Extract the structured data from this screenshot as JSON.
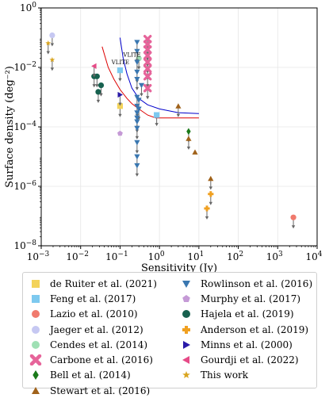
{
  "chart_data": {
    "type": "scatter",
    "xlabel": "Sensitivity (Jy)",
    "ylabel": "Surface density (deg⁻²)",
    "xscale": "log",
    "yscale": "log",
    "xlim": [
      0.001,
      10000
    ],
    "ylim": [
      1e-08,
      1
    ],
    "xticks": [
      {
        "v": 0.001,
        "b": "10",
        "e": "−3"
      },
      {
        "v": 0.01,
        "b": "10",
        "e": "−2"
      },
      {
        "v": 0.1,
        "b": "10",
        "e": "−1"
      },
      {
        "v": 1,
        "b": "10",
        "e": "0"
      },
      {
        "v": 10,
        "b": "10",
        "e": "1"
      },
      {
        "v": 100,
        "b": "10",
        "e": "2"
      },
      {
        "v": 1000,
        "b": "10",
        "e": "3"
      },
      {
        "v": 10000,
        "b": "10",
        "e": "4"
      }
    ],
    "yticks": [
      {
        "v": 1e-08,
        "b": "10",
        "e": "−8"
      },
      {
        "v": 1e-06,
        "b": "10",
        "e": "−6"
      },
      {
        "v": 0.0001,
        "b": "10",
        "e": "−4"
      },
      {
        "v": 0.01,
        "b": "10",
        "e": "−2"
      },
      {
        "v": 1,
        "b": "10",
        "e": "0"
      }
    ],
    "curves": [
      {
        "label": "VLITE",
        "color": "#0000cc",
        "points": [
          [
            0.1,
            0.1
          ],
          [
            0.12,
            0.02
          ],
          [
            0.15,
            0.006
          ],
          [
            0.2,
            0.002
          ],
          [
            0.3,
            0.0009
          ],
          [
            0.5,
            0.00055
          ],
          [
            1,
            0.0004
          ],
          [
            3,
            0.0003
          ],
          [
            10,
            0.00028
          ]
        ]
      },
      {
        "label": "VLITE",
        "color": "#dd0000",
        "points": [
          [
            0.035,
            0.05
          ],
          [
            0.05,
            0.01
          ],
          [
            0.07,
            0.004
          ],
          [
            0.1,
            0.0018
          ],
          [
            0.15,
            0.0009
          ],
          [
            0.2,
            0.0006
          ],
          [
            0.3,
            0.0004
          ],
          [
            0.5,
            0.00025
          ],
          [
            0.8,
            0.0002
          ],
          [
            2,
            0.0002
          ],
          [
            10,
            0.0002
          ]
        ]
      }
    ],
    "series": [
      {
        "name": "de Ruiter et al. (2021)",
        "marker": "square",
        "color": "#f3d35a",
        "points": [
          [
            0.1,
            0.0005,
            1
          ]
        ]
      },
      {
        "name": "Feng et al. (2017)",
        "marker": "square",
        "color": "#7dc9ef",
        "points": [
          [
            0.1,
            0.008,
            1
          ],
          [
            0.85,
            0.00025,
            1
          ]
        ]
      },
      {
        "name": "Lazio et al. (2010)",
        "marker": "circle",
        "color": "#f07a6d",
        "points": [
          [
            2500,
            9e-08,
            1
          ]
        ]
      },
      {
        "name": "Jaeger et al. (2012)",
        "marker": "circle",
        "color": "#c6c8f2",
        "points": [
          [
            0.0019,
            0.12,
            1
          ]
        ]
      },
      {
        "name": "Cendes et al. (2014)",
        "marker": "circle",
        "color": "#9fe0b4",
        "points": [
          [
            0.3,
            0.02,
            1
          ]
        ]
      },
      {
        "name": "Carbone et al. (2016)",
        "marker": "x",
        "color": "#e6649a",
        "points": [
          [
            0.5,
            0.09,
            1
          ],
          [
            0.5,
            0.06,
            1
          ],
          [
            0.5,
            0.04,
            1
          ],
          [
            0.5,
            0.025,
            1
          ],
          [
            0.5,
            0.015,
            1
          ],
          [
            0.5,
            0.009,
            1
          ],
          [
            0.5,
            0.005,
            1
          ],
          [
            0.5,
            0.002,
            1
          ]
        ]
      },
      {
        "name": "Bell et al. (2014)",
        "marker": "diamond",
        "color": "#1a7a1a",
        "points": [
          [
            5.5,
            7e-05,
            1
          ]
        ]
      },
      {
        "name": "Stewart et al. (2016)",
        "marker": "triangle-up",
        "color": "#a0621a",
        "points": [
          [
            3,
            0.0005,
            1
          ],
          [
            5.5,
            4e-05,
            1
          ],
          [
            8,
            1.4e-05,
            0
          ],
          [
            20,
            1.8e-06,
            1
          ]
        ]
      },
      {
        "name": "Rowlinson et al. (2016)",
        "marker": "triangle-down",
        "color": "#3a77b0",
        "points": [
          [
            0.27,
            0.07,
            1
          ],
          [
            0.27,
            0.035,
            1
          ],
          [
            0.27,
            0.015,
            1
          ],
          [
            0.27,
            0.007,
            1
          ],
          [
            0.27,
            0.004,
            1
          ],
          [
            0.27,
            0.001,
            1
          ],
          [
            0.3,
            0.0008,
            1
          ],
          [
            0.27,
            0.0005,
            1
          ],
          [
            0.3,
            0.0004,
            1
          ],
          [
            0.27,
            0.0003,
            1
          ],
          [
            0.27,
            0.0002,
            1
          ],
          [
            0.27,
            0.00015,
            1
          ],
          [
            0.27,
            9e-05,
            1
          ],
          [
            0.27,
            3e-05,
            1
          ],
          [
            0.27,
            1e-05,
            1
          ],
          [
            0.27,
            5e-06,
            1
          ],
          [
            0.35,
            0.0025,
            1
          ]
        ]
      },
      {
        "name": "Murphy et al. (2017)",
        "marker": "pentagon",
        "color": "#c59ad6",
        "points": [
          [
            0.1,
            6e-05,
            0
          ]
        ]
      },
      {
        "name": "Hajela et al. (2019)",
        "marker": "circle",
        "color": "#17614f",
        "points": [
          [
            0.022,
            0.005,
            1
          ],
          [
            0.026,
            0.005,
            1
          ],
          [
            0.028,
            0.0015,
            1
          ],
          [
            0.033,
            0.0025,
            1
          ]
        ]
      },
      {
        "name": "Anderson et al. (2019)",
        "marker": "plus",
        "color": "#f0a020",
        "points": [
          [
            20,
            5.5e-07,
            1
          ],
          [
            16,
            1.8e-07,
            1
          ]
        ]
      },
      {
        "name": "Minns et al. (2000)",
        "marker": "triangle-right",
        "color": "#2a1aa8",
        "points": [
          [
            0.1,
            0.0012,
            1
          ]
        ]
      },
      {
        "name": "Gourdji et al. (2022)",
        "marker": "triangle-left",
        "color": "#e64a87",
        "points": [
          [
            0.022,
            0.011,
            1
          ]
        ]
      },
      {
        "name": "This work",
        "marker": "star",
        "color": "#d9a520",
        "points": [
          [
            0.0015,
            0.065,
            1
          ],
          [
            0.0019,
            0.018,
            1
          ]
        ]
      }
    ],
    "legend": {
      "placement": "below",
      "columns": 2
    }
  }
}
